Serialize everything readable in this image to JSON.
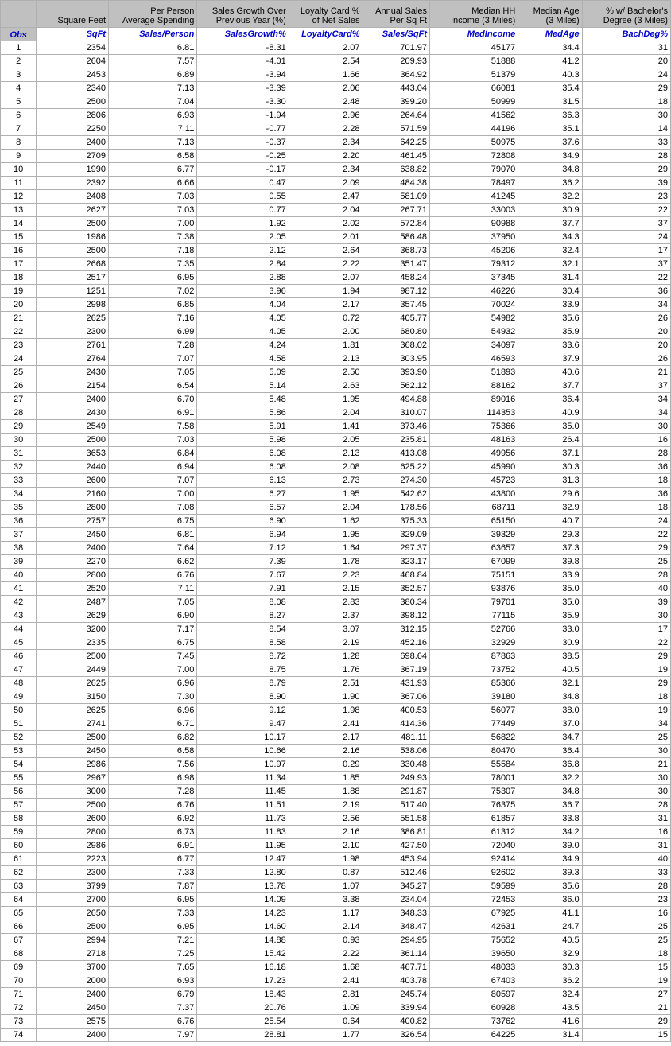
{
  "table": {
    "headers": [
      {
        "line1": "",
        "line2": "Square Feet",
        "var": "SqFt"
      },
      {
        "line1": "Per Person",
        "line2": "Average Spending",
        "var": "Sales/Person"
      },
      {
        "line1": "Sales Growth Over",
        "line2": "Previous Year (%)",
        "var": "SalesGrowth%"
      },
      {
        "line1": "Loyalty Card %",
        "line2": "of Net Sales",
        "var": "LoyaltyCard%"
      },
      {
        "line1": "Annual Sales",
        "line2": "Per Sq Ft",
        "var": "Sales/SqFt"
      },
      {
        "line1": "Median HH",
        "line2": "Income (3 Miles)",
        "var": "MedIncome"
      },
      {
        "line1": "Median Age",
        "line2": "(3 Miles)",
        "var": "MedAge"
      },
      {
        "line1": "% w/ Bachelor's",
        "line2": "Degree (3 Miles)",
        "var": "BachDeg%"
      }
    ],
    "obs_label": "Obs",
    "rows": [
      [
        1,
        2354,
        "6.81",
        "-8.31",
        "2.07",
        "701.97",
        45177,
        "34.4",
        31
      ],
      [
        2,
        2604,
        "7.57",
        "-4.01",
        "2.54",
        "209.93",
        51888,
        "41.2",
        20
      ],
      [
        3,
        2453,
        "6.89",
        "-3.94",
        "1.66",
        "364.92",
        51379,
        "40.3",
        24
      ],
      [
        4,
        2340,
        "7.13",
        "-3.39",
        "2.06",
        "443.04",
        66081,
        "35.4",
        29
      ],
      [
        5,
        2500,
        "7.04",
        "-3.30",
        "2.48",
        "399.20",
        50999,
        "31.5",
        18
      ],
      [
        6,
        2806,
        "6.93",
        "-1.94",
        "2.96",
        "264.64",
        41562,
        "36.3",
        30
      ],
      [
        7,
        2250,
        "7.11",
        "-0.77",
        "2.28",
        "571.59",
        44196,
        "35.1",
        14
      ],
      [
        8,
        2400,
        "7.13",
        "-0.37",
        "2.34",
        "642.25",
        50975,
        "37.6",
        33
      ],
      [
        9,
        2709,
        "6.58",
        "-0.25",
        "2.20",
        "461.45",
        72808,
        "34.9",
        28
      ],
      [
        10,
        1990,
        "6.77",
        "-0.17",
        "2.34",
        "638.82",
        79070,
        "34.8",
        29
      ],
      [
        11,
        2392,
        "6.66",
        "0.47",
        "2.09",
        "484.38",
        78497,
        "36.2",
        39
      ],
      [
        12,
        2408,
        "7.03",
        "0.55",
        "2.47",
        "581.09",
        41245,
        "32.2",
        23
      ],
      [
        13,
        2627,
        "7.03",
        "0.77",
        "2.04",
        "267.71",
        33003,
        "30.9",
        22
      ],
      [
        14,
        2500,
        "7.00",
        "1.92",
        "2.02",
        "572.84",
        90988,
        "37.7",
        37
      ],
      [
        15,
        1986,
        "7.38",
        "2.05",
        "2.01",
        "586.48",
        37950,
        "34.3",
        24
      ],
      [
        16,
        2500,
        "7.18",
        "2.12",
        "2.64",
        "368.73",
        45206,
        "32.4",
        17
      ],
      [
        17,
        2668,
        "7.35",
        "2.84",
        "2.22",
        "351.47",
        79312,
        "32.1",
        37
      ],
      [
        18,
        2517,
        "6.95",
        "2.88",
        "2.07",
        "458.24",
        37345,
        "31.4",
        22
      ],
      [
        19,
        1251,
        "7.02",
        "3.96",
        "1.94",
        "987.12",
        46226,
        "30.4",
        36
      ],
      [
        20,
        2998,
        "6.85",
        "4.04",
        "2.17",
        "357.45",
        70024,
        "33.9",
        34
      ],
      [
        21,
        2625,
        "7.16",
        "4.05",
        "0.72",
        "405.77",
        54982,
        "35.6",
        26
      ],
      [
        22,
        2300,
        "6.99",
        "4.05",
        "2.00",
        "680.80",
        54932,
        "35.9",
        20
      ],
      [
        23,
        2761,
        "7.28",
        "4.24",
        "1.81",
        "368.02",
        34097,
        "33.6",
        20
      ],
      [
        24,
        2764,
        "7.07",
        "4.58",
        "2.13",
        "303.95",
        46593,
        "37.9",
        26
      ],
      [
        25,
        2430,
        "7.05",
        "5.09",
        "2.50",
        "393.90",
        51893,
        "40.6",
        21
      ],
      [
        26,
        2154,
        "6.54",
        "5.14",
        "2.63",
        "562.12",
        88162,
        "37.7",
        37
      ],
      [
        27,
        2400,
        "6.70",
        "5.48",
        "1.95",
        "494.88",
        89016,
        "36.4",
        34
      ],
      [
        28,
        2430,
        "6.91",
        "5.86",
        "2.04",
        "310.07",
        114353,
        "40.9",
        34
      ],
      [
        29,
        2549,
        "7.58",
        "5.91",
        "1.41",
        "373.46",
        75366,
        "35.0",
        30
      ],
      [
        30,
        2500,
        "7.03",
        "5.98",
        "2.05",
        "235.81",
        48163,
        "26.4",
        16
      ],
      [
        31,
        3653,
        "6.84",
        "6.08",
        "2.13",
        "413.08",
        49956,
        "37.1",
        28
      ],
      [
        32,
        2440,
        "6.94",
        "6.08",
        "2.08",
        "625.22",
        45990,
        "30.3",
        36
      ],
      [
        33,
        2600,
        "7.07",
        "6.13",
        "2.73",
        "274.30",
        45723,
        "31.3",
        18
      ],
      [
        34,
        2160,
        "7.00",
        "6.27",
        "1.95",
        "542.62",
        43800,
        "29.6",
        36
      ],
      [
        35,
        2800,
        "7.08",
        "6.57",
        "2.04",
        "178.56",
        68711,
        "32.9",
        18
      ],
      [
        36,
        2757,
        "6.75",
        "6.90",
        "1.62",
        "375.33",
        65150,
        "40.7",
        24
      ],
      [
        37,
        2450,
        "6.81",
        "6.94",
        "1.95",
        "329.09",
        39329,
        "29.3",
        22
      ],
      [
        38,
        2400,
        "7.64",
        "7.12",
        "1.64",
        "297.37",
        63657,
        "37.3",
        29
      ],
      [
        39,
        2270,
        "6.62",
        "7.39",
        "1.78",
        "323.17",
        67099,
        "39.8",
        25
      ],
      [
        40,
        2800,
        "6.76",
        "7.67",
        "2.23",
        "468.84",
        75151,
        "33.9",
        28
      ],
      [
        41,
        2520,
        "7.11",
        "7.91",
        "2.15",
        "352.57",
        93876,
        "35.0",
        40
      ],
      [
        42,
        2487,
        "7.05",
        "8.08",
        "2.83",
        "380.34",
        79701,
        "35.0",
        39
      ],
      [
        43,
        2629,
        "6.90",
        "8.27",
        "2.37",
        "398.12",
        77115,
        "35.9",
        30
      ],
      [
        44,
        3200,
        "7.17",
        "8.54",
        "3.07",
        "312.15",
        52766,
        "33.0",
        17
      ],
      [
        45,
        2335,
        "6.75",
        "8.58",
        "2.19",
        "452.16",
        32929,
        "30.9",
        22
      ],
      [
        46,
        2500,
        "7.45",
        "8.72",
        "1.28",
        "698.64",
        87863,
        "38.5",
        29
      ],
      [
        47,
        2449,
        "7.00",
        "8.75",
        "1.76",
        "367.19",
        73752,
        "40.5",
        19
      ],
      [
        48,
        2625,
        "6.96",
        "8.79",
        "2.51",
        "431.93",
        85366,
        "32.1",
        29
      ],
      [
        49,
        3150,
        "7.30",
        "8.90",
        "1.90",
        "367.06",
        39180,
        "34.8",
        18
      ],
      [
        50,
        2625,
        "6.96",
        "9.12",
        "1.98",
        "400.53",
        56077,
        "38.0",
        19
      ],
      [
        51,
        2741,
        "6.71",
        "9.47",
        "2.41",
        "414.36",
        77449,
        "37.0",
        34
      ],
      [
        52,
        2500,
        "6.82",
        "10.17",
        "2.17",
        "481.11",
        56822,
        "34.7",
        25
      ],
      [
        53,
        2450,
        "6.58",
        "10.66",
        "2.16",
        "538.06",
        80470,
        "36.4",
        30
      ],
      [
        54,
        2986,
        "7.56",
        "10.97",
        "0.29",
        "330.48",
        55584,
        "36.8",
        21
      ],
      [
        55,
        2967,
        "6.98",
        "11.34",
        "1.85",
        "249.93",
        78001,
        "32.2",
        30
      ],
      [
        56,
        3000,
        "7.28",
        "11.45",
        "1.88",
        "291.87",
        75307,
        "34.8",
        30
      ],
      [
        57,
        2500,
        "6.76",
        "11.51",
        "2.19",
        "517.40",
        76375,
        "36.7",
        28
      ],
      [
        58,
        2600,
        "6.92",
        "11.73",
        "2.56",
        "551.58",
        61857,
        "33.8",
        31
      ],
      [
        59,
        2800,
        "6.73",
        "11.83",
        "2.16",
        "386.81",
        61312,
        "34.2",
        16
      ],
      [
        60,
        2986,
        "6.91",
        "11.95",
        "2.10",
        "427.50",
        72040,
        "39.0",
        31
      ],
      [
        61,
        2223,
        "6.77",
        "12.47",
        "1.98",
        "453.94",
        92414,
        "34.9",
        40
      ],
      [
        62,
        2300,
        "7.33",
        "12.80",
        "0.87",
        "512.46",
        92602,
        "39.3",
        33
      ],
      [
        63,
        3799,
        "7.87",
        "13.78",
        "1.07",
        "345.27",
        59599,
        "35.6",
        28
      ],
      [
        64,
        2700,
        "6.95",
        "14.09",
        "3.38",
        "234.04",
        72453,
        "36.0",
        23
      ],
      [
        65,
        2650,
        "7.33",
        "14.23",
        "1.17",
        "348.33",
        67925,
        "41.1",
        16
      ],
      [
        66,
        2500,
        "6.95",
        "14.60",
        "2.14",
        "348.47",
        42631,
        "24.7",
        25
      ],
      [
        67,
        2994,
        "7.21",
        "14.88",
        "0.93",
        "294.95",
        75652,
        "40.5",
        25
      ],
      [
        68,
        2718,
        "7.25",
        "15.42",
        "2.22",
        "361.14",
        39650,
        "32.9",
        18
      ],
      [
        69,
        3700,
        "7.65",
        "16.18",
        "1.68",
        "467.71",
        48033,
        "30.3",
        15
      ],
      [
        70,
        2000,
        "6.93",
        "17.23",
        "2.41",
        "403.78",
        67403,
        "36.2",
        19
      ],
      [
        71,
        2400,
        "6.79",
        "18.43",
        "2.81",
        "245.74",
        80597,
        "32.4",
        27
      ],
      [
        72,
        2450,
        "7.37",
        "20.76",
        "1.09",
        "339.94",
        60928,
        "43.5",
        21
      ],
      [
        73,
        2575,
        "6.76",
        "25.54",
        "0.64",
        "400.82",
        73762,
        "41.6",
        29
      ],
      [
        74,
        2400,
        "7.97",
        "28.81",
        "1.77",
        "326.54",
        64225,
        "31.4",
        15
      ]
    ]
  }
}
